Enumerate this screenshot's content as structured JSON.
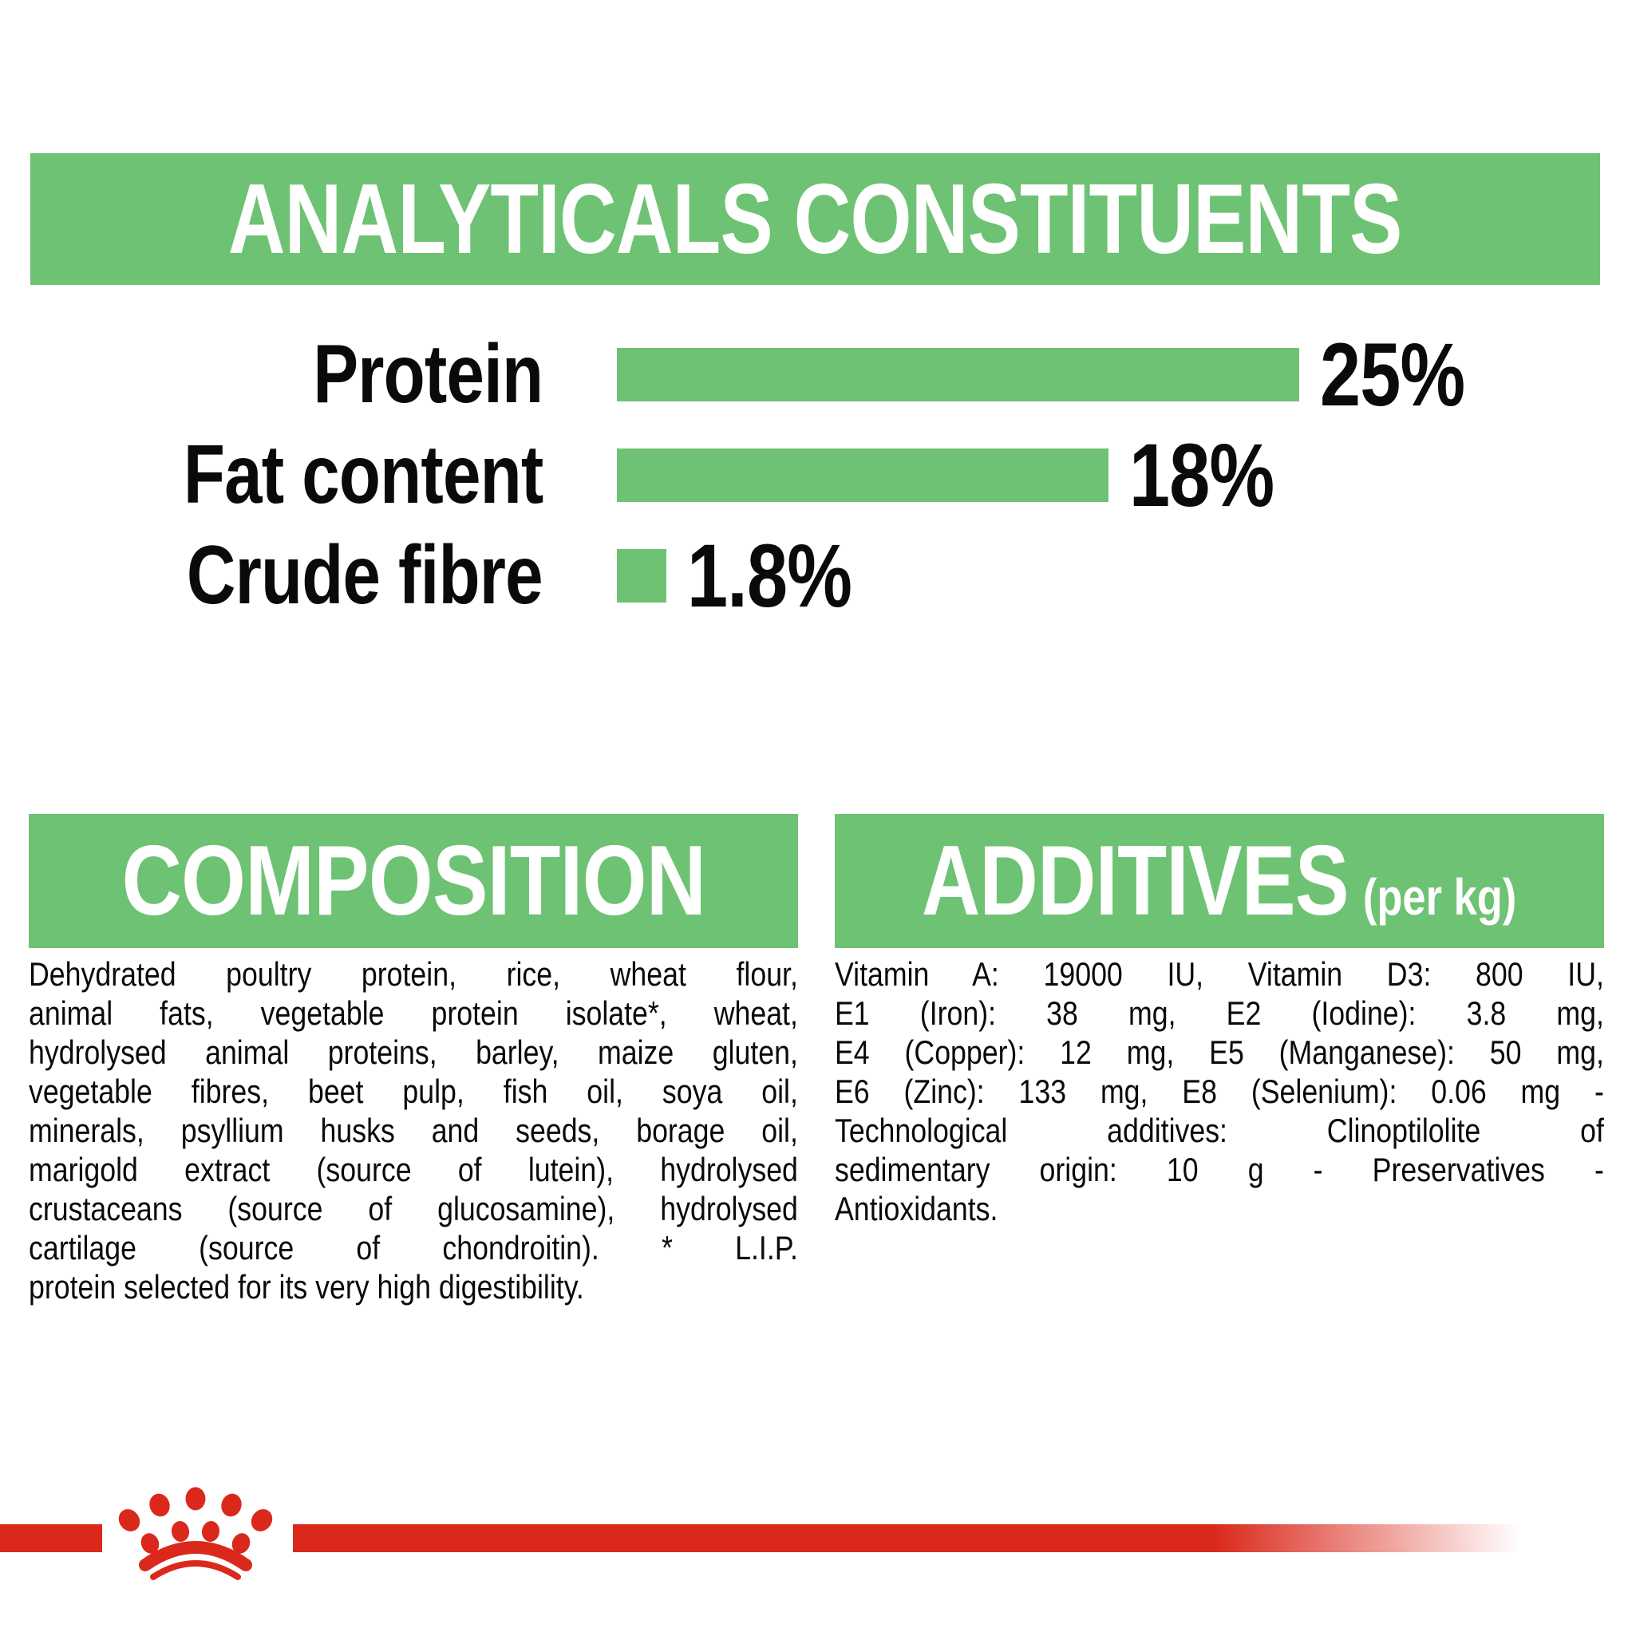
{
  "page": {
    "background": "#ffffff",
    "accent_green": "#6EC273",
    "brand_red": "#DA291C",
    "text_color": "#0a0a0a"
  },
  "analyticals": {
    "title": "ANALYTICALS CONSTITUENTS",
    "chart_data": {
      "type": "bar",
      "orientation": "horizontal",
      "categories": [
        "Protein",
        "Fat content",
        "Crude fibre"
      ],
      "values": [
        25,
        18,
        1.8
      ],
      "value_labels": [
        "25%",
        "18%",
        "1.8%"
      ],
      "xlim": [
        0,
        25
      ],
      "bar_color": "#6EC273",
      "grid": false,
      "legend": "none"
    }
  },
  "composition": {
    "title": "COMPOSITION",
    "lines": [
      "Dehydrated poultry protein, rice, wheat flour,",
      "animal fats, vegetable protein isolate*, wheat,",
      "hydrolysed animal proteins, barley, maize gluten,",
      "vegetable fibres, beet pulp, fish oil, soya oil,",
      "minerals, psyllium husks and seeds, borage oil,",
      "marigold extract (source of lutein), hydrolysed",
      "crustaceans (source of glucosamine), hydrolysed",
      "cartilage (source of chondroitin). * L.I.P.",
      "protein selected for its very high digestibility."
    ]
  },
  "additives": {
    "title": "ADDITIVES",
    "title_suffix": "(per kg)",
    "lines": [
      "Vitamin A: 19000 IU, Vitamin D3: 800 IU,",
      "E1 (Iron): 38 mg, E2 (Iodine): 3.8 mg,",
      "E4 (Copper): 12 mg, E5 (Manganese): 50 mg,",
      "E6 (Zinc): 133 mg, E8 (Selenium): 0.06 mg -",
      "Technological additives: Clinoptilolite of",
      "sedimentary origin: 10 g - Preservatives -",
      "Antioxidants."
    ]
  },
  "footer": {
    "logo": "royal-canin-crown"
  }
}
